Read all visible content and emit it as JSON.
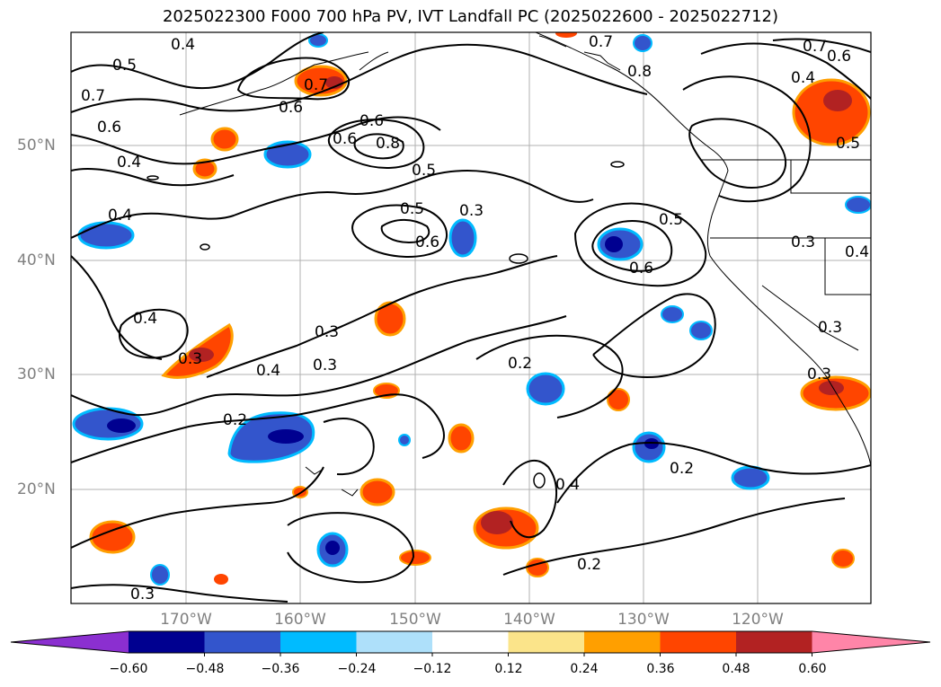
{
  "title": "2025022300 F000 700 hPa PV, IVT Landfall PC (2025022600 - 2025022712)",
  "lat_labels": [
    "50°N",
    "40°N",
    "30°N",
    "20°N"
  ],
  "lon_labels": [
    "170°W",
    "160°W",
    "150°W",
    "140°W",
    "130°W",
    "120°W"
  ],
  "colorbar": {
    "ticks": [
      "−0.60",
      "−0.48",
      "−0.36",
      "−0.24",
      "−0.12",
      "0.12",
      "0.24",
      "0.36",
      "0.48",
      "0.60"
    ],
    "colors": [
      "#8b2fd0",
      "#000090",
      "#3355cc",
      "#00bbff",
      "#aee0fa",
      "#ffffff",
      "#fbe48a",
      "#ff9f00",
      "#ff4500",
      "#b22222",
      "#ff85a8"
    ]
  },
  "contour_labels": [
    "0.4",
    "0.5",
    "0.7",
    "0.6",
    "0.7",
    "0.6",
    "0.7",
    "0.6",
    "0.8",
    "0.7",
    "0.6",
    "0.4",
    "0.4",
    "0.6",
    "0.8",
    "0.5",
    "0.5",
    "0.5",
    "0.3",
    "0.6",
    "0.5",
    "0.6",
    "0.4",
    "0.3",
    "0.4",
    "0.4",
    "0.3",
    "0.4",
    "0.3",
    "0.3",
    "0.2",
    "0.2",
    "0.3",
    "0.2",
    "0.4",
    "0.2",
    "0.3",
    "0.3"
  ]
}
